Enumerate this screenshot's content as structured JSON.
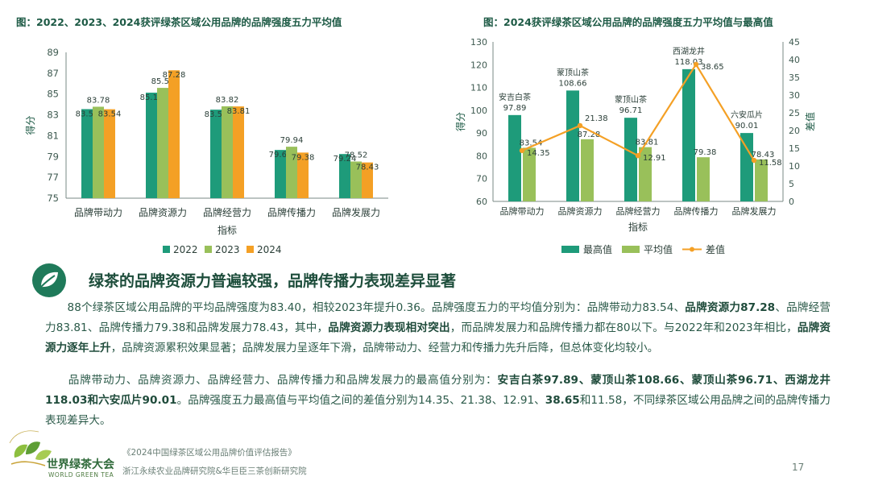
{
  "chart_data": [
    {
      "type": "bar",
      "title": "图：2022、2023、2024获评绿茶区域公用品牌的品牌强度五力平均值",
      "xlabel": "指标",
      "ylabel": "得分",
      "ylim": [
        75,
        89
      ],
      "yticks": [
        75,
        77,
        79,
        81,
        83,
        85,
        87,
        89
      ],
      "grid": false,
      "legend": "bottom",
      "categories": [
        "品牌带动力",
        "品牌资源力",
        "品牌经营力",
        "品牌传播力",
        "品牌发展力"
      ],
      "series": [
        {
          "name": "2022",
          "color": "#1e9b7a",
          "values": [
            83.55,
            85.13,
            83.5,
            79.63,
            79.24
          ],
          "labels": [
            "83.55",
            "85.13",
            "83.50",
            "79.63",
            "79.24"
          ]
        },
        {
          "name": "2023",
          "color": "#99c05a",
          "values": [
            83.78,
            85.59,
            83.82,
            79.94,
            78.52
          ],
          "labels": [
            "83.78",
            "85.59",
            "83.82",
            "79.94",
            "78.52"
          ]
        },
        {
          "name": "2024",
          "color": "#f4a025",
          "values": [
            83.54,
            87.28,
            83.81,
            79.38,
            78.43
          ],
          "labels": [
            "83.54",
            "87.28",
            "83.81",
            "79.38",
            "78.43"
          ]
        }
      ]
    },
    {
      "type": "bar",
      "title": "图：2024获评绿茶区域公用品牌的品牌强度五力平均值与最高值",
      "xlabel": "指标",
      "ylabel": "得分",
      "y2label": "差值",
      "ylim": [
        60,
        130
      ],
      "yticks": [
        60,
        70,
        80,
        90,
        100,
        110,
        120,
        130
      ],
      "y2lim": [
        0,
        45
      ],
      "y2ticks": [
        0,
        5,
        10,
        15,
        20,
        25,
        30,
        35,
        40,
        45
      ],
      "grid": false,
      "legend": "bottom",
      "categories": [
        "品牌带动力",
        "品牌资源力",
        "品牌经营力",
        "品牌传播力",
        "品牌发展力"
      ],
      "series": [
        {
          "name": "最高值",
          "color": "#1e9b7a",
          "values": [
            97.89,
            108.66,
            96.71,
            118.03,
            90.01
          ],
          "names": [
            "安吉白茶",
            "蒙顶山茶",
            "蒙顶山茶",
            "西湖龙井",
            "六安瓜片"
          ],
          "labels": [
            "97.89",
            "108.66",
            "96.71",
            "118.03",
            "90.01"
          ]
        },
        {
          "name": "平均值",
          "color": "#99c05a",
          "values": [
            83.54,
            87.28,
            83.81,
            79.38,
            78.43
          ],
          "labels": [
            "83.54",
            "87.28",
            "83.81",
            "79.38",
            "78.43"
          ]
        },
        {
          "name": "差值",
          "type": "line",
          "axis": "right",
          "color": "#f4a025",
          "values": [
            14.35,
            21.38,
            12.91,
            38.65,
            11.58
          ],
          "labels": [
            "14.35",
            "21.38",
            "12.91",
            "38.65",
            "11.58"
          ]
        }
      ]
    }
  ],
  "section": {
    "headline": "绿茶的品牌资源力普遍较强，品牌传播力表现差异显著",
    "para1_runs": [
      {
        "t": "88个绿茶区域公用品牌的平均品牌强度为83.40，相较2023年提升0.36。品牌强度五力的平均值分别为：品牌带动力83.54、"
      },
      {
        "t": "品牌资源力87.28",
        "b": true
      },
      {
        "t": "、品牌经营力83.81、品牌传播力79.38和品牌发展力78.43，其中，"
      },
      {
        "t": "品牌资源力表现相对突出",
        "b": true
      },
      {
        "t": "，而品牌发展力和品牌传播力都在80以下。与2022年和2023年相比，"
      },
      {
        "t": "品牌资源力逐年上升",
        "b": true
      },
      {
        "t": "，品牌资源累积效果显著；品牌发展力呈逐年下滑，品牌带动力、经营力和传播力先升后降，但总体变化均较小。"
      }
    ],
    "para2_runs": [
      {
        "t": "品牌带动力、品牌资源力、品牌经营力、品牌传播力和品牌发展力的最高值分别为："
      },
      {
        "t": "安吉白茶97.89、蒙顶山茶108.66、蒙顶山茶96.71、西湖龙井118.03和六安瓜片90.01",
        "b": true
      },
      {
        "t": "。品牌强度五力最高值与平均值之间的差值分别为14.35、21.38、12.91、"
      },
      {
        "t": "38.65",
        "b": true
      },
      {
        "t": "和11.58，不同绿茶区域公用品牌之间的品牌传播力表现差异大。"
      }
    ]
  },
  "footer": {
    "report": "《2024中国绿茶区域公用品牌价值评估报告》",
    "institutes": "浙江永续农业品牌研究院&华巨臣三茶创新研究院",
    "page": "17",
    "logo_cn": "世界绿茶大会",
    "logo_en": "WORLD GREEN TEA"
  },
  "colors": {
    "primary_green": "#1e9b7a",
    "light_green": "#99c05a",
    "orange": "#f4a025",
    "text": "#2b5a49"
  },
  "icons": [
    "leaf-icon",
    "tea-leaves-emblem-icon"
  ]
}
